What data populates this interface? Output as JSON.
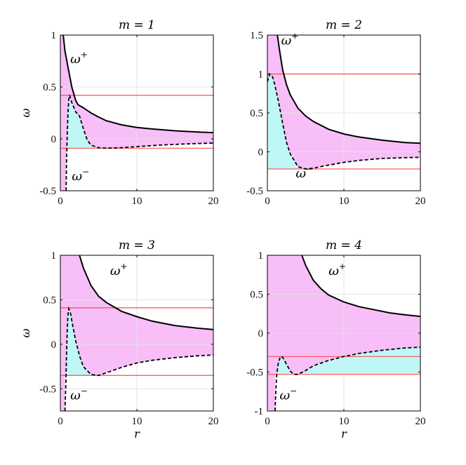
{
  "colors": {
    "band_fill": "#f7bef7",
    "well_fill": "#bff7f7",
    "reference_lines": "#ff4d4d",
    "curves": "#000000",
    "grid": "#e3e3e3"
  },
  "chart_data": [
    {
      "type": "line",
      "title": "m = 1",
      "xlabel": "",
      "ylabel": "ω",
      "xlim": [
        0,
        20
      ],
      "ylim": [
        -0.5,
        1
      ],
      "xticks": [
        "0",
        "10",
        "20"
      ],
      "yticks": [
        "-0.5",
        "0",
        "0.5",
        "1"
      ],
      "grid": true,
      "labels": {
        "upper": "ω",
        "upper_sup": "+",
        "lower": "ω",
        "lower_sup": "−"
      },
      "hlines": [
        0.42,
        -0.09
      ],
      "upper": {
        "name": "ω⁺",
        "x": [
          0.38,
          0.6,
          1.0,
          1.5,
          2.0,
          2.3,
          2.5,
          3.0,
          4.0,
          5.0,
          6.0,
          8.0,
          10.0,
          12.0,
          15.0,
          18.0,
          20.0
        ],
        "y": [
          1.0,
          0.85,
          0.69,
          0.5,
          0.37,
          0.33,
          0.32,
          0.3,
          0.25,
          0.21,
          0.175,
          0.135,
          0.11,
          0.095,
          0.078,
          0.066,
          0.06
        ]
      },
      "lower": {
        "name": "ω⁻",
        "x": [
          0.75,
          0.8,
          0.9,
          1.0,
          1.1,
          1.2,
          1.5,
          2.0,
          2.5,
          3.0,
          3.5,
          4.0,
          5.0,
          6.0,
          8.0,
          10.0,
          13.0,
          16.0,
          20.0
        ],
        "y": [
          -0.5,
          -0.25,
          0.05,
          0.25,
          0.38,
          0.42,
          0.35,
          0.26,
          0.22,
          0.1,
          -0.01,
          -0.06,
          -0.085,
          -0.09,
          -0.085,
          -0.075,
          -0.06,
          -0.05,
          -0.04
        ]
      }
    },
    {
      "type": "line",
      "title": "m = 2",
      "xlabel": "",
      "ylabel": "",
      "xlim": [
        0,
        20
      ],
      "ylim": [
        -0.5,
        1.5
      ],
      "xticks": [
        "0",
        "10",
        "20"
      ],
      "yticks": [
        "-0.5",
        "0",
        "0.5",
        "1",
        "1.5"
      ],
      "grid": true,
      "labels": {
        "upper": "ω",
        "upper_sup": "+",
        "lower": "ω",
        "lower_sup": "−"
      },
      "hlines": [
        1.0,
        -0.22
      ],
      "upper": {
        "name": "ω⁺",
        "x": [
          1.3,
          1.6,
          2.0,
          2.5,
          3.0,
          4.0,
          5.0,
          6.0,
          8.0,
          10.0,
          12.0,
          15.0,
          18.0,
          20.0
        ],
        "y": [
          1.5,
          1.3,
          1.05,
          0.86,
          0.73,
          0.56,
          0.46,
          0.39,
          0.29,
          0.23,
          0.19,
          0.15,
          0.12,
          0.11
        ]
      },
      "lower": {
        "name": "ω⁻",
        "x": [
          0.0,
          0.3,
          0.7,
          1.0,
          1.5,
          2.0,
          2.5,
          3.0,
          4.0,
          5.0,
          6.0,
          8.0,
          10.0,
          12.0,
          15.0,
          18.0,
          20.0
        ],
        "y": [
          0.9,
          1.0,
          0.96,
          0.85,
          0.62,
          0.36,
          0.12,
          -0.03,
          -0.19,
          -0.22,
          -0.21,
          -0.17,
          -0.135,
          -0.11,
          -0.085,
          -0.075,
          -0.07
        ]
      }
    },
    {
      "type": "line",
      "title": "m = 3",
      "xlabel": "r",
      "ylabel": "ω",
      "xlim": [
        0,
        20
      ],
      "ylim": [
        -0.75,
        1
      ],
      "xticks": [
        "0",
        "10",
        "20"
      ],
      "yticks": [
        "-0.5",
        "0",
        "0.5",
        "1"
      ],
      "grid": true,
      "labels": {
        "upper": "ω",
        "upper_sup": "+",
        "lower": "ω",
        "lower_sup": "−"
      },
      "hlines": [
        0.41,
        -0.35
      ],
      "upper": {
        "name": "ω⁺",
        "x": [
          2.5,
          3.0,
          4.0,
          5.0,
          6.0,
          8.0,
          10.0,
          12.0,
          15.0,
          18.0,
          20.0
        ],
        "y": [
          1.0,
          0.86,
          0.66,
          0.54,
          0.47,
          0.37,
          0.31,
          0.26,
          0.21,
          0.18,
          0.165
        ]
      },
      "lower": {
        "name": "ω⁻",
        "x": [
          0.6,
          0.7,
          0.8,
          0.9,
          1.0,
          1.1,
          1.3,
          1.6,
          2.0,
          2.5,
          3.0,
          4.0,
          5.0,
          6.0,
          8.0,
          10.0,
          12.0,
          15.0,
          18.0,
          20.0
        ],
        "y": [
          -0.75,
          -0.5,
          -0.15,
          0.15,
          0.33,
          0.4,
          0.36,
          0.22,
          0.04,
          -0.13,
          -0.25,
          -0.34,
          -0.35,
          -0.32,
          -0.26,
          -0.21,
          -0.18,
          -0.15,
          -0.13,
          -0.12
        ]
      }
    },
    {
      "type": "line",
      "title": "m = 4",
      "xlabel": "r",
      "ylabel": "",
      "xlim": [
        0,
        20
      ],
      "ylim": [
        -1,
        1
      ],
      "xticks": [
        "0",
        "10",
        "20"
      ],
      "yticks": [
        "-1",
        "-0.5",
        "0",
        "0.5",
        "1"
      ],
      "grid": true,
      "labels": {
        "upper": "ω",
        "upper_sup": "+",
        "lower": "ω",
        "lower_sup": "−"
      },
      "hlines": [
        -0.3,
        -0.53
      ],
      "upper": {
        "name": "ω⁺",
        "x": [
          4.5,
          5.0,
          6.0,
          7.0,
          8.0,
          10.0,
          12.0,
          14.0,
          16.0,
          18.0,
          20.0
        ],
        "y": [
          1.0,
          0.87,
          0.68,
          0.57,
          0.49,
          0.4,
          0.34,
          0.3,
          0.26,
          0.235,
          0.215
        ]
      },
      "lower": {
        "name": "ω⁻",
        "x": [
          1.0,
          1.1,
          1.2,
          1.4,
          1.7,
          2.0,
          2.5,
          3.0,
          3.5,
          4.0,
          5.0,
          6.0,
          8.0,
          10.0,
          12.0,
          15.0,
          18.0,
          20.0
        ],
        "y": [
          -1.0,
          -0.75,
          -0.55,
          -0.4,
          -0.3,
          -0.31,
          -0.4,
          -0.49,
          -0.53,
          -0.53,
          -0.48,
          -0.42,
          -0.35,
          -0.3,
          -0.26,
          -0.22,
          -0.19,
          -0.18
        ]
      }
    }
  ]
}
